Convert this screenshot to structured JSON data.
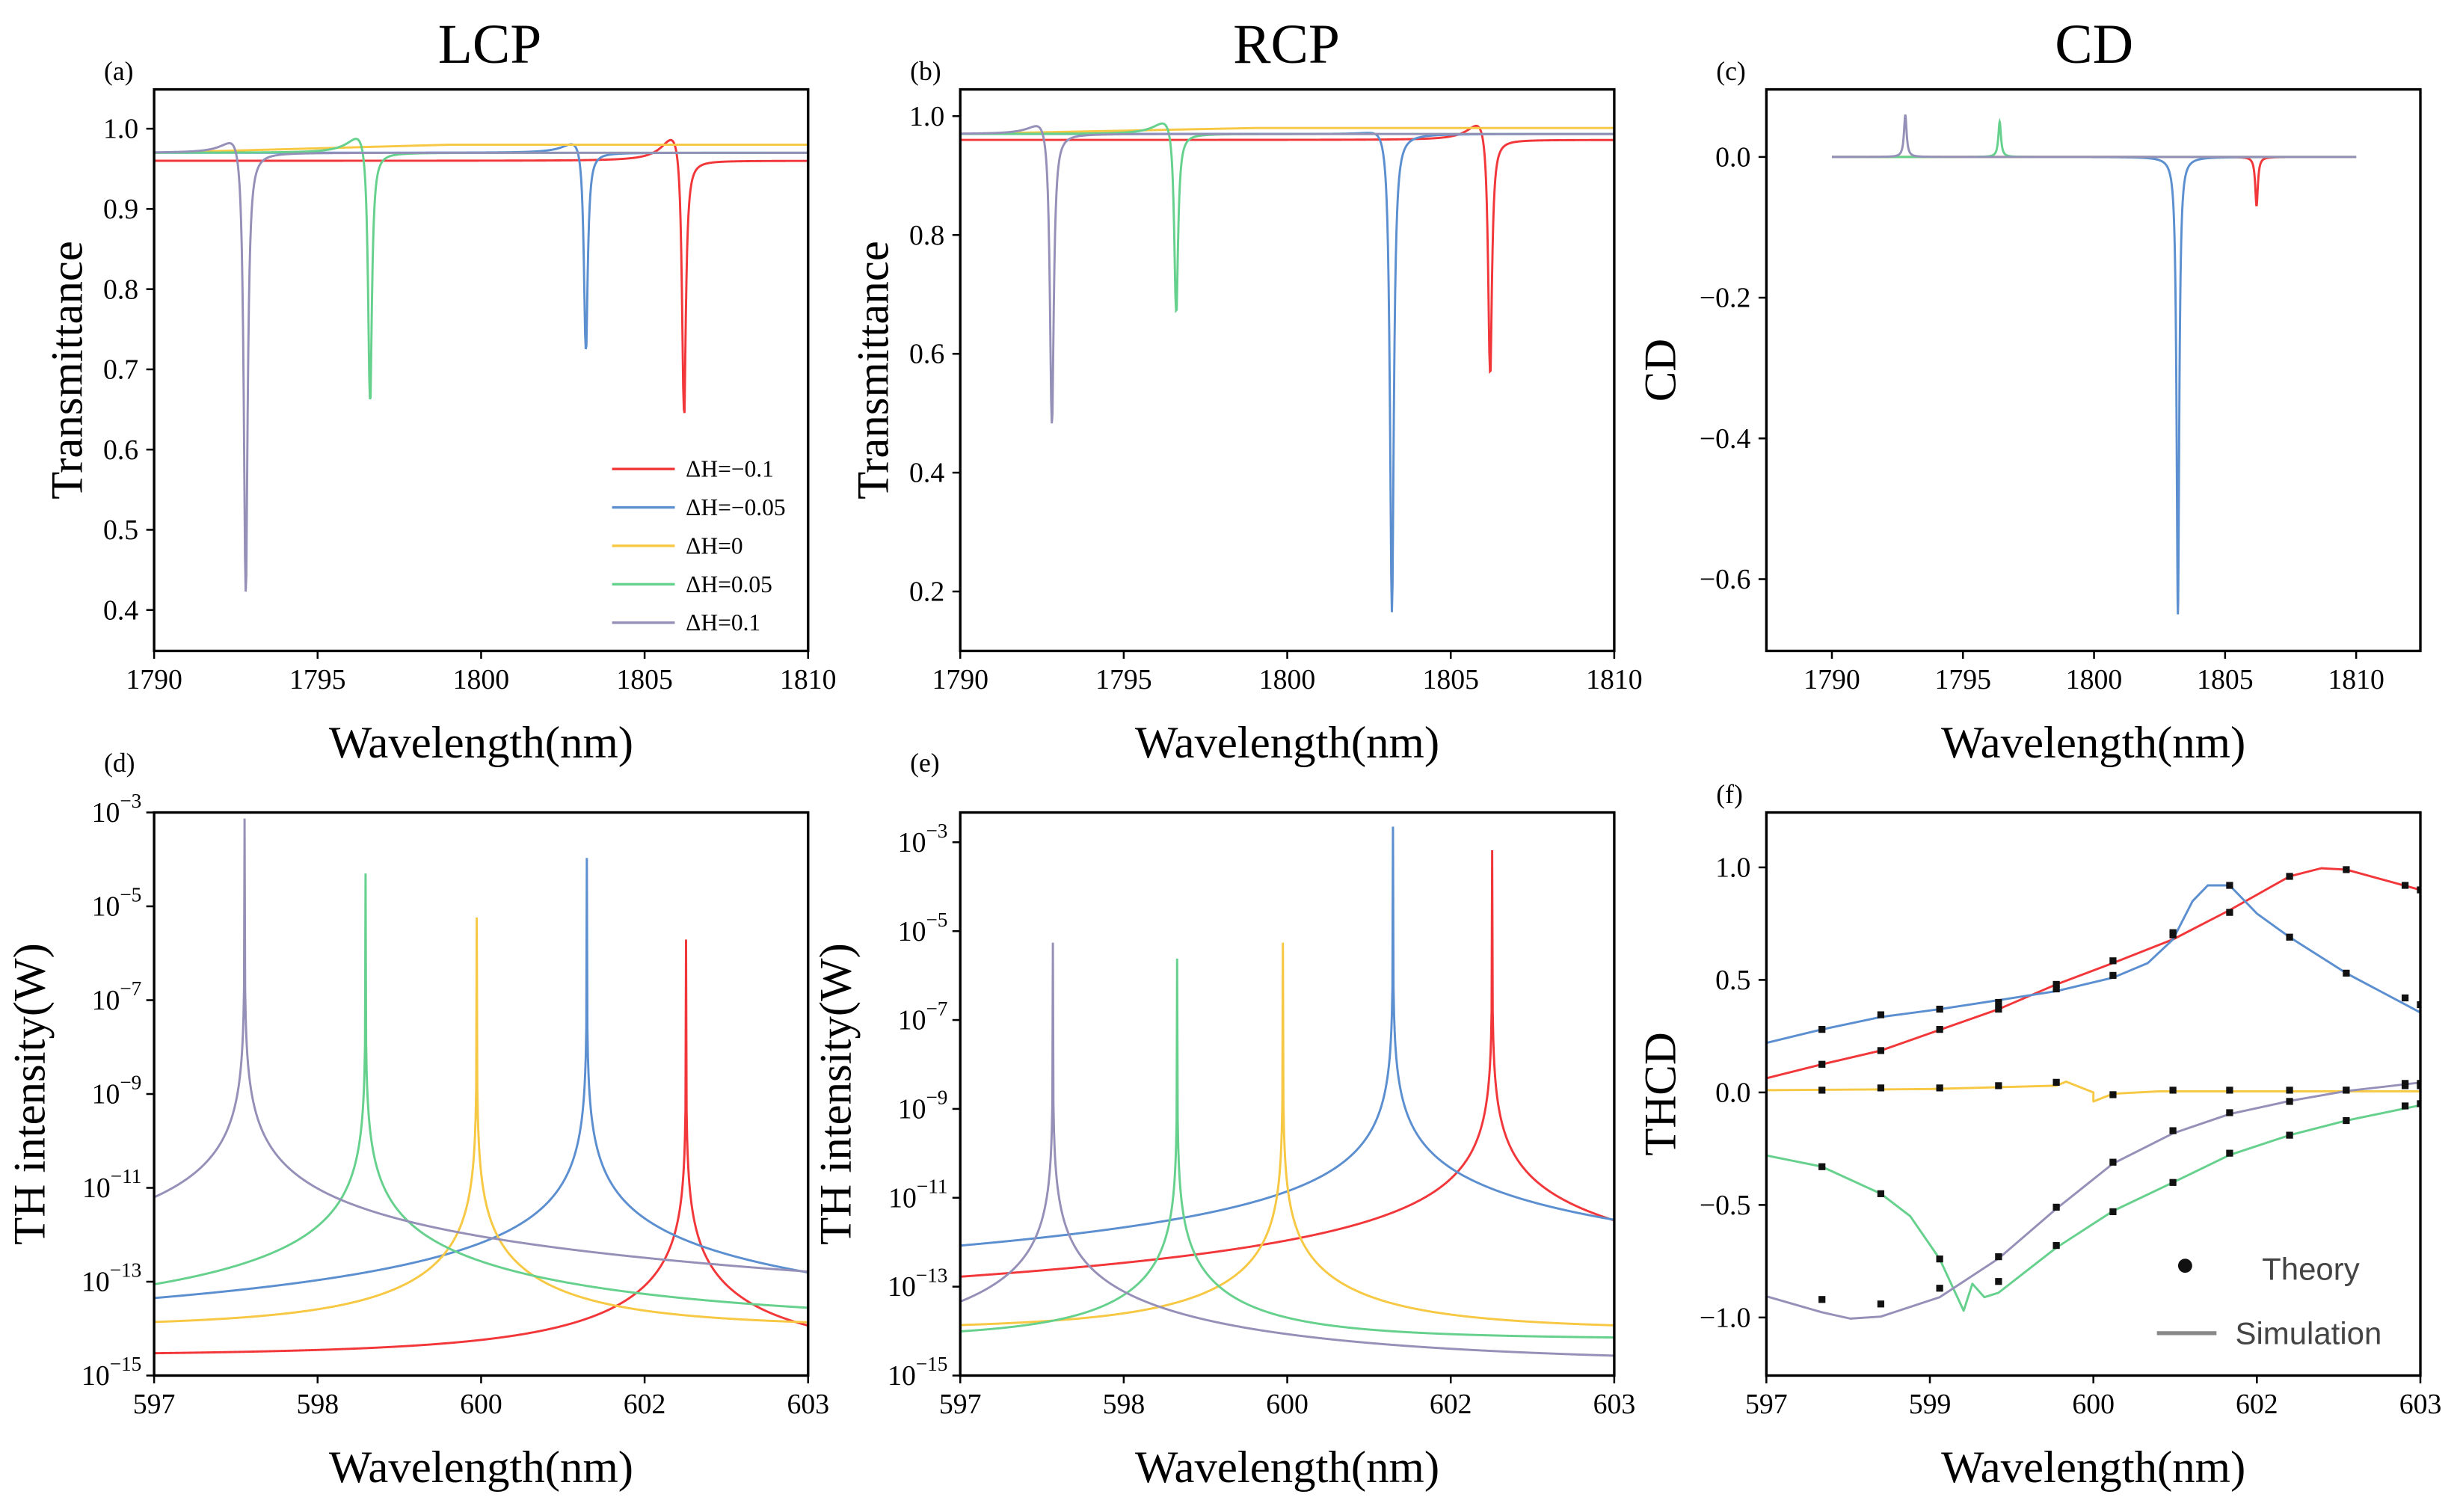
{
  "chart_data": [
    {
      "panel": "(a)",
      "title": "LCP",
      "type": "line",
      "xlabel": "Wavelength(nm)",
      "ylabel": "Transmittance",
      "xlim": [
        1790,
        1810
      ],
      "ylim": [
        0.349,
        1.049
      ],
      "yscale": "linear",
      "xticks": [
        1790,
        1795,
        1800,
        1805,
        1810
      ],
      "xticklabels": [
        "1790",
        "1795",
        "1800",
        "1805",
        "1810"
      ],
      "yticks": [
        0.4,
        0.5,
        0.6,
        0.7,
        0.8,
        0.9,
        1.0
      ],
      "yticklabels": [
        "0.4",
        "0.5",
        "0.6",
        "0.7",
        "0.8",
        "0.9",
        "1.0"
      ],
      "legend": {
        "placement": "bottom-right"
      },
      "model": "transmittance dip",
      "series": [
        {
          "name": "ΔH=−0.1",
          "color": "#f2373a",
          "baseline": 0.96,
          "dip_wavelength": 1806.2,
          "dip_min": 0.62,
          "peak": 1.0
        },
        {
          "name": "ΔH=−0.05",
          "color": "#5b8fd0",
          "baseline": 0.97,
          "dip_wavelength": 1803.2,
          "dip_min": 0.71,
          "peak": 0.99
        },
        {
          "name": "ΔH=0",
          "color": "#f7c843",
          "baseline": 0.98,
          "dip_wavelength": null,
          "dip_min": null,
          "peak": 0.98
        },
        {
          "name": "ΔH=0.05",
          "color": "#66d08d",
          "baseline": 0.97,
          "dip_wavelength": 1796.6,
          "dip_min": 0.64,
          "peak": 1.0
        },
        {
          "name": "ΔH=0.1",
          "color": "#9590b8",
          "baseline": 0.97,
          "dip_wavelength": 1792.8,
          "dip_min": 0.4,
          "peak": 1.0
        }
      ]
    },
    {
      "panel": "(b)",
      "title": "RCP",
      "type": "line",
      "xlabel": "Wavelength(nm)",
      "ylabel": "Transmittance",
      "xlim": [
        1790,
        1810
      ],
      "ylim": [
        0.1,
        1.045
      ],
      "yscale": "linear",
      "xticks": [
        1790,
        1795,
        1800,
        1805,
        1810
      ],
      "xticklabels": [
        "1790",
        "1795",
        "1800",
        "1805",
        "1810"
      ],
      "yticks": [
        0.2,
        0.4,
        0.6,
        0.8,
        1.0
      ],
      "yticklabels": [
        "0.2",
        "0.4",
        "0.6",
        "0.8",
        "1.0"
      ],
      "model": "transmittance dip",
      "series": [
        {
          "name": "ΔH=−0.1",
          "color": "#f2373a",
          "baseline": 0.96,
          "dip_wavelength": 1806.2,
          "dip_min": 0.54,
          "peak": 1.0
        },
        {
          "name": "ΔH=−0.05",
          "color": "#5b8fd0",
          "baseline": 0.97,
          "dip_wavelength": 1803.2,
          "dip_min": 0.15,
          "peak": 0.99
        },
        {
          "name": "ΔH=0",
          "color": "#f7c843",
          "baseline": 0.98,
          "dip_wavelength": null,
          "dip_min": null,
          "peak": 0.98
        },
        {
          "name": "ΔH=0.05",
          "color": "#66d08d",
          "baseline": 0.97,
          "dip_wavelength": 1796.6,
          "dip_min": 0.65,
          "peak": 1.0
        },
        {
          "name": "ΔH=0.1",
          "color": "#9590b8",
          "baseline": 0.97,
          "dip_wavelength": 1792.8,
          "dip_min": 0.46,
          "peak": 1.0
        }
      ]
    },
    {
      "panel": "(c)",
      "title": "CD",
      "type": "line",
      "xlabel": "Wavelength(nm)",
      "ylabel": "CD",
      "xlim": [
        1787.5,
        1812.45
      ],
      "ylim": [
        -0.702,
        0.096
      ],
      "yscale": "linear",
      "xticks": [
        1790,
        1795,
        1800,
        1805,
        1810
      ],
      "xticklabels": [
        "1790",
        "1795",
        "1800",
        "1805",
        "1810"
      ],
      "yticks": [
        0.0,
        -0.2,
        -0.4,
        -0.6
      ],
      "yticklabels": [
        "0.0",
        "−0.2",
        "−0.4",
        "−0.6"
      ],
      "data_range": [
        1790,
        1810
      ],
      "model": "cd resonance",
      "series": [
        {
          "name": "ΔH=−0.1",
          "color": "#f2373a",
          "resonance_wavelength": 1806.2,
          "value": -0.07
        },
        {
          "name": "ΔH=−0.05",
          "color": "#5b8fd0",
          "resonance_wavelength": 1803.2,
          "value": -0.65
        },
        {
          "name": "ΔH=0",
          "color": "#f7c843",
          "resonance_wavelength": null,
          "value": 0
        },
        {
          "name": "ΔH=0.05",
          "color": "#66d08d",
          "resonance_wavelength": 1796.4,
          "value": 0.05
        },
        {
          "name": "ΔH=0.1",
          "color": "#9590b8",
          "resonance_wavelength": 1792.8,
          "value": 0.06
        }
      ]
    },
    {
      "panel": "(d)",
      "title": "",
      "type": "line",
      "xlabel": "Wavelength(nm)",
      "ylabel": "TH intensity(W)",
      "xlim": [
        597,
        603
      ],
      "ylim_log10": [
        -15,
        -3
      ],
      "yscale": "log",
      "xticks": [
        597,
        598.5,
        600,
        601.5,
        603
      ],
      "xticklabels": [
        "597",
        "598",
        "600",
        "602",
        "603"
      ],
      "yticks_log10": [
        -3,
        -5,
        -7,
        -9,
        -11,
        -13,
        -15
      ],
      "ytick_base": "10",
      "model": "lorentzian peak",
      "series": [
        {
          "name": "ΔH=−0.1",
          "color": "#f2373a",
          "peak_wavelength": 601.88,
          "peak_log10": -5.71,
          "background_log10": -14.6
        },
        {
          "name": "ΔH=−0.05",
          "color": "#5b8fd0",
          "peak_wavelength": 600.97,
          "peak_log10": -3.97,
          "background_log10": -14.3
        },
        {
          "name": "ΔH=0",
          "color": "#f7c843",
          "peak_wavelength": 599.96,
          "peak_log10": -5.24,
          "background_log10": -14.0
        },
        {
          "name": "ΔH=0.05",
          "color": "#66d08d",
          "peak_wavelength": 598.94,
          "peak_log10": -4.3,
          "background_log10": -14.0
        },
        {
          "name": "ΔH=0.1",
          "color": "#9590b8",
          "peak_wavelength": 597.83,
          "peak_log10": -3.13,
          "background_log10": -14.9
        }
      ]
    },
    {
      "panel": "(e)",
      "title": "",
      "type": "line",
      "xlabel": "Wavelength(nm)",
      "ylabel": "TH intensity(W)",
      "xlim": [
        597,
        603
      ],
      "ylim_log10": [
        -15,
        -2.33
      ],
      "yscale": "log",
      "xticks": [
        597,
        598.5,
        600,
        601.5,
        603
      ],
      "xticklabels": [
        "597",
        "598",
        "600",
        "602",
        "603"
      ],
      "yticks_log10": [
        -3,
        -5,
        -7,
        -9,
        -11,
        -13,
        -15
      ],
      "ytick_base": "10",
      "model": "lorentzian peak",
      "series": [
        {
          "name": "ΔH=−0.1",
          "color": "#f2373a",
          "peak_wavelength": 601.88,
          "peak_log10": -3.18,
          "background_log10": -14.3
        },
        {
          "name": "ΔH=−0.05",
          "color": "#5b8fd0",
          "peak_wavelength": 600.97,
          "peak_log10": -2.65,
          "background_log10": -14.2
        },
        {
          "name": "ΔH=0",
          "color": "#f7c843",
          "peak_wavelength": 599.96,
          "peak_log10": -5.26,
          "background_log10": -14.0
        },
        {
          "name": "ΔH=0.05",
          "color": "#66d08d",
          "peak_wavelength": 598.99,
          "peak_log10": -5.62,
          "background_log10": -14.2
        },
        {
          "name": "ΔH=0.1",
          "color": "#9590b8",
          "peak_wavelength": 597.85,
          "peak_log10": -5.26,
          "background_log10": -14.8
        }
      ]
    },
    {
      "panel": "(f)",
      "title": "",
      "type": "line",
      "xlabel": "Wavelength(nm)",
      "ylabel": "THCD",
      "xlim": [
        597,
        603
      ],
      "ylim": [
        -1.258,
        1.244
      ],
      "yscale": "linear",
      "xticks": [
        597,
        598.5,
        600,
        601.5,
        603
      ],
      "xticklabels": [
        "597",
        "599",
        "600",
        "602",
        "603"
      ],
      "yticks": [
        1.0,
        0.5,
        0.0,
        -0.5,
        -1.0
      ],
      "yticklabels": [
        "1.0",
        "0.5",
        "0.0",
        "−0.5",
        "−1.0"
      ],
      "legend": {
        "placement": "bottom-right",
        "theory_label": "Theory",
        "simulation_label": "Simulation"
      },
      "simulation": [
        {
          "name": "ΔH=−0.1",
          "color": "#f2373a",
          "points": [
            [
              597,
              0.063
            ],
            [
              597.51,
              0.125
            ],
            [
              598.05,
              0.186
            ],
            [
              598.59,
              0.278
            ],
            [
              599.13,
              0.37
            ],
            [
              599.66,
              0.48
            ],
            [
              600.18,
              0.575
            ],
            [
              600.73,
              0.68
            ],
            [
              601.25,
              0.81
            ],
            [
              601.8,
              0.96
            ],
            [
              602.09,
              0.996
            ],
            [
              602.32,
              0.99
            ],
            [
              603,
              0.9
            ]
          ]
        },
        {
          "name": "ΔH=−0.05",
          "color": "#5b8fd0",
          "points": [
            [
              597,
              0.22
            ],
            [
              597.51,
              0.28
            ],
            [
              598.05,
              0.335
            ],
            [
              598.59,
              0.37
            ],
            [
              599.13,
              0.41
            ],
            [
              599.66,
              0.45
            ],
            [
              600.18,
              0.51
            ],
            [
              600.5,
              0.575
            ],
            [
              600.73,
              0.68
            ],
            [
              600.91,
              0.85
            ],
            [
              601.05,
              0.92
            ],
            [
              601.25,
              0.92
            ],
            [
              601.5,
              0.795
            ],
            [
              601.8,
              0.69
            ],
            [
              602.32,
              0.53
            ],
            [
              603,
              0.355
            ]
          ]
        },
        {
          "name": "ΔH=0",
          "color": "#f7c843",
          "points": [
            [
              597,
              0.01
            ],
            [
              598.5,
              0.015
            ],
            [
              599.66,
              0.03
            ],
            [
              599.75,
              0.048
            ],
            [
              600,
              0.0
            ],
            [
              600.0,
              -0.04
            ],
            [
              600.18,
              -0.006
            ],
            [
              600.6,
              0.005
            ],
            [
              603,
              0.005
            ]
          ]
        },
        {
          "name": "ΔH=0.05",
          "color": "#66d08d",
          "points": [
            [
              597,
              -0.28
            ],
            [
              597.51,
              -0.33
            ],
            [
              598.05,
              -0.45
            ],
            [
              598.32,
              -0.55
            ],
            [
              598.59,
              -0.74
            ],
            [
              598.81,
              -0.97
            ],
            [
              598.89,
              -0.85
            ],
            [
              599.0,
              -0.91
            ],
            [
              599.13,
              -0.89
            ],
            [
              599.66,
              -0.69
            ],
            [
              600.18,
              -0.527
            ],
            [
              600.73,
              -0.4
            ],
            [
              601.25,
              -0.278
            ],
            [
              601.8,
              -0.19
            ],
            [
              602.32,
              -0.125
            ],
            [
              603,
              -0.057
            ]
          ]
        },
        {
          "name": "ΔH=0.1",
          "color": "#9590b8",
          "points": [
            [
              597,
              -0.906
            ],
            [
              597.51,
              -0.977
            ],
            [
              597.77,
              -1.005
            ],
            [
              598.05,
              -0.996
            ],
            [
              598.59,
              -0.91
            ],
            [
              599.13,
              -0.738
            ],
            [
              599.66,
              -0.517
            ],
            [
              600.18,
              -0.316
            ],
            [
              600.73,
              -0.182
            ],
            [
              601.25,
              -0.096
            ],
            [
              601.8,
              -0.038
            ],
            [
              602.32,
              0.006
            ],
            [
              603,
              0.044
            ]
          ]
        }
      ],
      "theory": [
        [
          597.51,
          0.125
        ],
        [
          598.05,
          0.186
        ],
        [
          598.59,
          0.28
        ],
        [
          599.13,
          0.37
        ],
        [
          599.66,
          0.48
        ],
        [
          600.18,
          0.585
        ],
        [
          600.73,
          0.7
        ],
        [
          601.25,
          0.8
        ],
        [
          601.8,
          0.96
        ],
        [
          602.32,
          0.99
        ],
        [
          602.86,
          0.92
        ],
        [
          603,
          0.9
        ],
        [
          597.51,
          0.28
        ],
        [
          598.05,
          0.345
        ],
        [
          598.59,
          0.37
        ],
        [
          599.13,
          0.4
        ],
        [
          599.66,
          0.46
        ],
        [
          600.18,
          0.52
        ],
        [
          600.73,
          0.71
        ],
        [
          601.25,
          0.92
        ],
        [
          601.8,
          0.69
        ],
        [
          602.32,
          0.53
        ],
        [
          602.86,
          0.42
        ],
        [
          603,
          0.39
        ],
        [
          597.51,
          0.01
        ],
        [
          598.05,
          0.02
        ],
        [
          598.59,
          0.02
        ],
        [
          599.13,
          0.03
        ],
        [
          599.66,
          0.045
        ],
        [
          600.18,
          -0.01
        ],
        [
          600.73,
          0.01
        ],
        [
          601.25,
          0.01
        ],
        [
          601.8,
          0.01
        ],
        [
          602.32,
          0.01
        ],
        [
          602.86,
          0.03
        ],
        [
          603,
          0.03
        ],
        [
          597.51,
          -0.92
        ],
        [
          598.05,
          -0.94
        ],
        [
          598.59,
          -0.87
        ],
        [
          599.13,
          -0.73
        ],
        [
          599.66,
          -0.51
        ],
        [
          600.18,
          -0.31
        ],
        [
          600.73,
          -0.17
        ],
        [
          601.25,
          -0.09
        ],
        [
          601.8,
          -0.04
        ],
        [
          602.32,
          0.01
        ],
        [
          602.86,
          0.04
        ],
        [
          603,
          0.04
        ],
        [
          597.51,
          -0.33
        ],
        [
          598.05,
          -0.45
        ],
        [
          598.59,
          -0.74
        ],
        [
          599.13,
          -0.84
        ],
        [
          599.66,
          -0.68
        ],
        [
          600.18,
          -0.53
        ],
        [
          600.73,
          -0.4
        ],
        [
          601.25,
          -0.27
        ],
        [
          601.8,
          -0.19
        ],
        [
          602.32,
          -0.125
        ],
        [
          602.86,
          -0.06
        ],
        [
          603,
          -0.05
        ]
      ]
    }
  ]
}
